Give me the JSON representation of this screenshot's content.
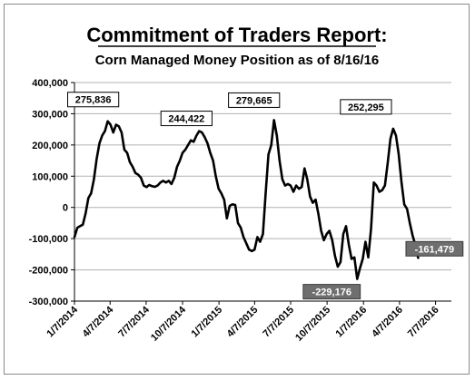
{
  "chart_data": {
    "type": "line",
    "title": "Commitment of Traders Report:",
    "subtitle": "Corn Managed Money Position as of 8/16/16",
    "xlabel": "",
    "ylabel": "",
    "ylim": [
      -300000,
      400000
    ],
    "y_ticks": [
      400000,
      300000,
      200000,
      100000,
      0,
      -100000,
      -200000,
      -300000
    ],
    "y_tick_labels": [
      "400,000",
      "300,000",
      "200,000",
      "100,000",
      "0",
      "-100,000",
      "-200,000",
      "-300,000"
    ],
    "x_ticks": [
      "2014-01-07",
      "2014-04-07",
      "2014-07-07",
      "2014-10-07",
      "2015-01-07",
      "2015-04-07",
      "2015-07-07",
      "2015-10-07",
      "2016-01-07",
      "2016-04-07",
      "2016-07-07"
    ],
    "x_tick_labels": [
      "1/7/2014",
      "4/7/2014",
      "7/7/2014",
      "10/7/2014",
      "1/7/2015",
      "4/7/2015",
      "7/7/2015",
      "10/7/2015",
      "1/7/2016",
      "4/7/2016",
      "7/7/2016"
    ],
    "xlim": [
      "2014-01-07",
      "2016-08-16"
    ],
    "grid": "horizontal",
    "legend": "none",
    "line_color": "#000000",
    "series": [
      {
        "name": "",
        "points": [
          [
            "2014-01-07",
            -95000
          ],
          [
            "2014-01-14",
            -65000
          ],
          [
            "2014-01-21",
            -60000
          ],
          [
            "2014-01-28",
            -55000
          ],
          [
            "2014-02-04",
            -20000
          ],
          [
            "2014-02-11",
            30000
          ],
          [
            "2014-02-18",
            45000
          ],
          [
            "2014-02-25",
            90000
          ],
          [
            "2014-03-04",
            155000
          ],
          [
            "2014-03-11",
            205000
          ],
          [
            "2014-03-18",
            230000
          ],
          [
            "2014-03-25",
            245000
          ],
          [
            "2014-04-01",
            275836
          ],
          [
            "2014-04-08",
            265000
          ],
          [
            "2014-04-15",
            240000
          ],
          [
            "2014-04-22",
            265000
          ],
          [
            "2014-04-29",
            260000
          ],
          [
            "2014-05-06",
            240000
          ],
          [
            "2014-05-13",
            185000
          ],
          [
            "2014-05-20",
            175000
          ],
          [
            "2014-05-27",
            145000
          ],
          [
            "2014-06-03",
            130000
          ],
          [
            "2014-06-10",
            110000
          ],
          [
            "2014-06-17",
            105000
          ],
          [
            "2014-06-24",
            95000
          ],
          [
            "2014-07-01",
            70000
          ],
          [
            "2014-07-08",
            65000
          ],
          [
            "2014-07-15",
            72000
          ],
          [
            "2014-07-22",
            68000
          ],
          [
            "2014-07-29",
            66000
          ],
          [
            "2014-08-05",
            70000
          ],
          [
            "2014-08-12",
            80000
          ],
          [
            "2014-08-19",
            85000
          ],
          [
            "2014-08-26",
            80000
          ],
          [
            "2014-09-02",
            85000
          ],
          [
            "2014-09-09",
            75000
          ],
          [
            "2014-09-16",
            95000
          ],
          [
            "2014-09-23",
            130000
          ],
          [
            "2014-09-30",
            150000
          ],
          [
            "2014-10-07",
            175000
          ],
          [
            "2014-10-14",
            185000
          ],
          [
            "2014-10-21",
            200000
          ],
          [
            "2014-10-28",
            215000
          ],
          [
            "2014-11-04",
            210000
          ],
          [
            "2014-11-11",
            230000
          ],
          [
            "2014-11-18",
            244422
          ],
          [
            "2014-11-25",
            240000
          ],
          [
            "2014-12-02",
            225000
          ],
          [
            "2014-12-09",
            205000
          ],
          [
            "2014-12-16",
            175000
          ],
          [
            "2014-12-23",
            150000
          ],
          [
            "2014-12-30",
            100000
          ],
          [
            "2015-01-06",
            60000
          ],
          [
            "2015-01-13",
            45000
          ],
          [
            "2015-01-20",
            25000
          ],
          [
            "2015-01-27",
            -35000
          ],
          [
            "2015-02-03",
            5000
          ],
          [
            "2015-02-10",
            10000
          ],
          [
            "2015-02-17",
            8000
          ],
          [
            "2015-02-24",
            -50000
          ],
          [
            "2015-03-03",
            -65000
          ],
          [
            "2015-03-10",
            -95000
          ],
          [
            "2015-03-17",
            -115000
          ],
          [
            "2015-03-24",
            -135000
          ],
          [
            "2015-03-31",
            -140000
          ],
          [
            "2015-04-07",
            -135000
          ],
          [
            "2015-04-14",
            -95000
          ],
          [
            "2015-04-21",
            -110000
          ],
          [
            "2015-04-28",
            -85000
          ],
          [
            "2015-05-05",
            50000
          ],
          [
            "2015-05-12",
            170000
          ],
          [
            "2015-05-19",
            200000
          ],
          [
            "2015-05-26",
            279665
          ],
          [
            "2015-06-02",
            230000
          ],
          [
            "2015-06-09",
            150000
          ],
          [
            "2015-06-16",
            90000
          ],
          [
            "2015-06-23",
            70000
          ],
          [
            "2015-06-30",
            75000
          ],
          [
            "2015-07-07",
            70000
          ],
          [
            "2015-07-14",
            50000
          ],
          [
            "2015-07-21",
            70000
          ],
          [
            "2015-07-28",
            60000
          ],
          [
            "2015-08-04",
            65000
          ],
          [
            "2015-08-11",
            125000
          ],
          [
            "2015-08-18",
            90000
          ],
          [
            "2015-08-25",
            35000
          ],
          [
            "2015-09-01",
            15000
          ],
          [
            "2015-09-08",
            25000
          ],
          [
            "2015-09-15",
            -20000
          ],
          [
            "2015-09-22",
            -75000
          ],
          [
            "2015-09-29",
            -105000
          ],
          [
            "2015-10-06",
            -85000
          ],
          [
            "2015-10-13",
            -75000
          ],
          [
            "2015-10-20",
            -105000
          ],
          [
            "2015-10-27",
            -155000
          ],
          [
            "2015-11-03",
            -190000
          ],
          [
            "2015-11-10",
            -175000
          ],
          [
            "2015-11-17",
            -85000
          ],
          [
            "2015-11-24",
            -60000
          ],
          [
            "2015-12-01",
            -120000
          ],
          [
            "2015-12-08",
            -165000
          ],
          [
            "2015-12-15",
            -160000
          ],
          [
            "2015-12-22",
            -229176
          ],
          [
            "2015-12-29",
            -195000
          ],
          [
            "2016-01-05",
            -165000
          ],
          [
            "2016-01-12",
            -110000
          ],
          [
            "2016-01-19",
            -160000
          ],
          [
            "2016-01-26",
            -70000
          ],
          [
            "2016-02-02",
            80000
          ],
          [
            "2016-02-09",
            70000
          ],
          [
            "2016-02-16",
            50000
          ],
          [
            "2016-02-23",
            55000
          ],
          [
            "2016-03-01",
            70000
          ],
          [
            "2016-03-08",
            140000
          ],
          [
            "2016-03-15",
            220000
          ],
          [
            "2016-03-22",
            252295
          ],
          [
            "2016-03-29",
            230000
          ],
          [
            "2016-04-05",
            170000
          ],
          [
            "2016-04-12",
            80000
          ],
          [
            "2016-04-19",
            10000
          ],
          [
            "2016-04-26",
            -5000
          ],
          [
            "2016-05-03",
            -50000
          ],
          [
            "2016-05-10",
            -90000
          ],
          [
            "2016-05-17",
            -120000
          ],
          [
            "2016-05-24",
            -161479
          ]
        ]
      }
    ],
    "annotations": [
      {
        "label": "275,836",
        "value": 275836,
        "style": "box"
      },
      {
        "label": "244,422",
        "value": 244422,
        "style": "box"
      },
      {
        "label": "279,665",
        "value": 279665,
        "style": "box"
      },
      {
        "label": "252,295",
        "value": 252295,
        "style": "box"
      },
      {
        "label": "-229,176",
        "value": -229176,
        "style": "dark-box"
      },
      {
        "label": "-161,479",
        "value": -161479,
        "style": "dark-box"
      }
    ]
  }
}
